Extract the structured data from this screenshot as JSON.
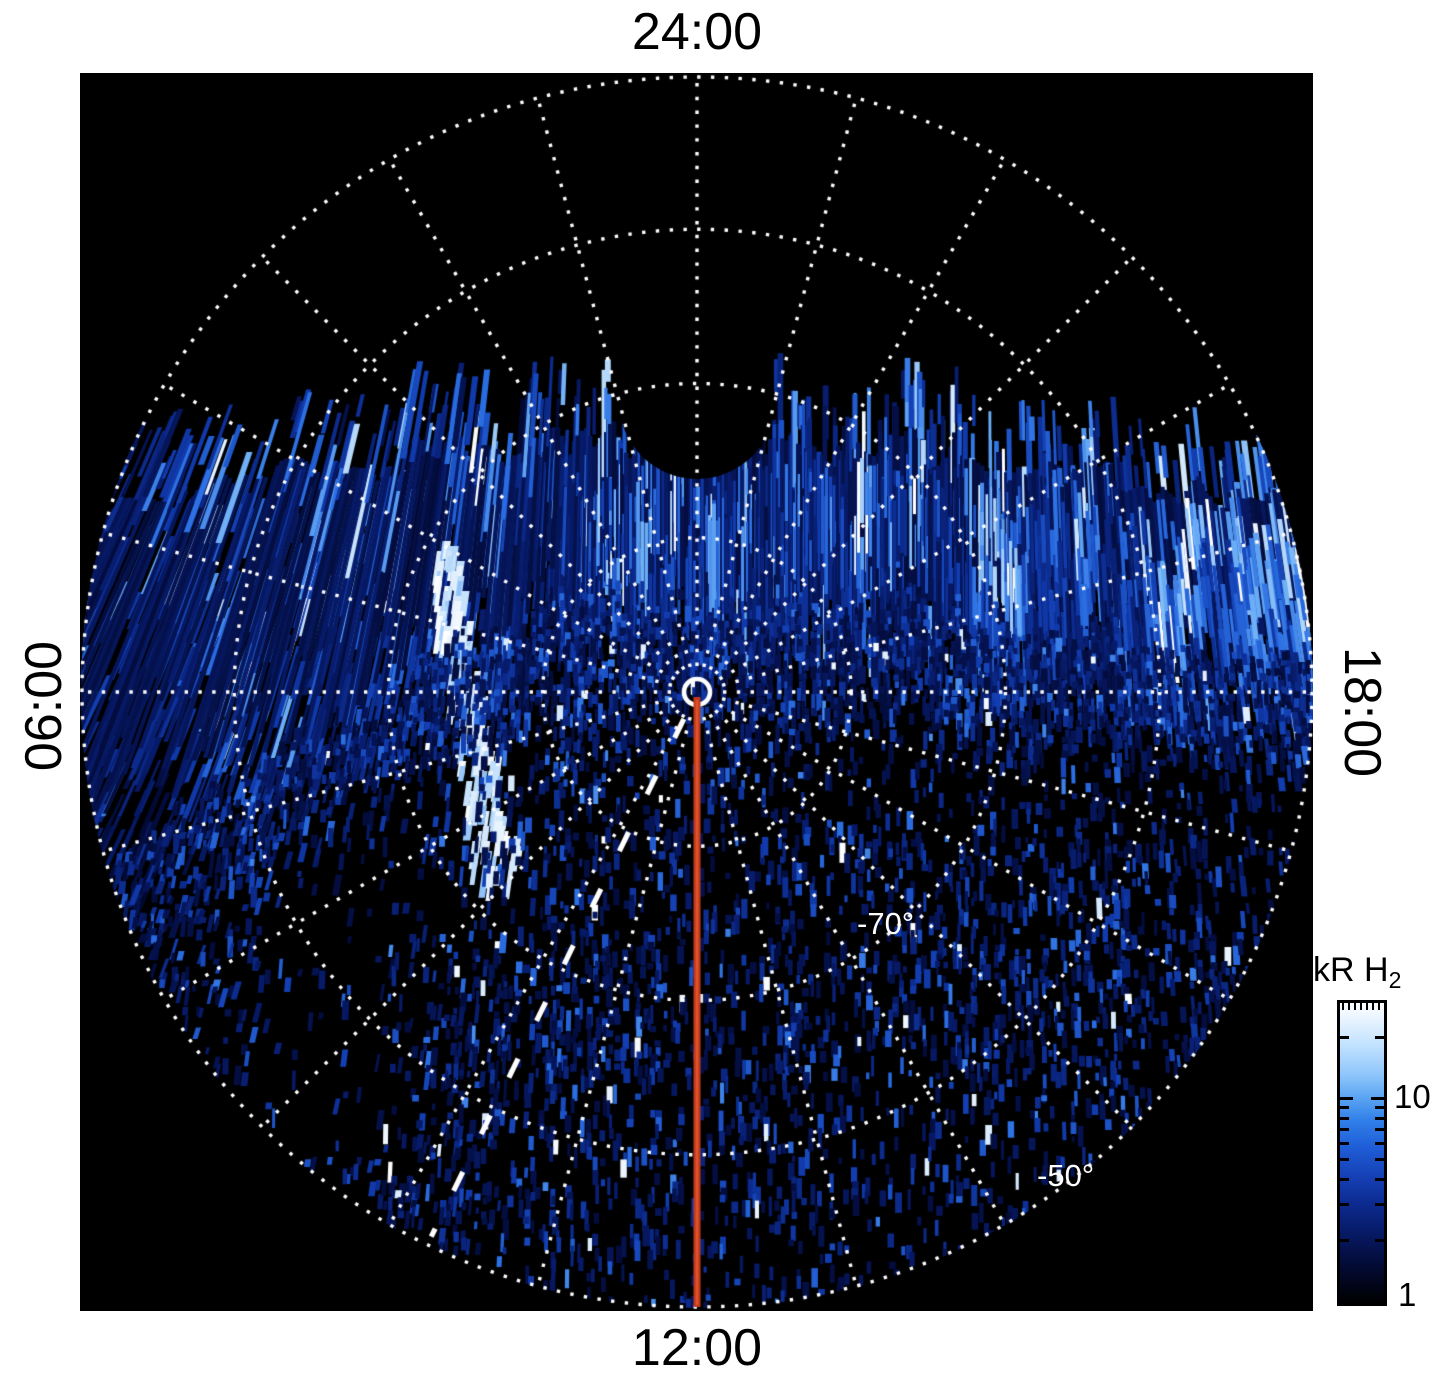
{
  "figure": {
    "time_labels": {
      "top": "24:00",
      "bottom": "12:00",
      "left": "06:00",
      "right": "18:00"
    },
    "lat_labels": [
      {
        "text": "-70°"
      },
      {
        "text": "-50°"
      }
    ],
    "colorbar": {
      "title_main": "kR H",
      "title_sub": "2",
      "tick_top": "10",
      "tick_bottom": "1"
    },
    "colors": {
      "page_bg": "#ffffff",
      "plot_bg": "#000000",
      "grid": "#ffffff",
      "red_line": "#c23a1d",
      "red_line_core": "#de5529",
      "text": "#000000",
      "label_on_plot": "#ffffff"
    }
  },
  "chart_data": {
    "type": "heatmap",
    "projection": "polar",
    "hemisphere": "southern (pole at center)",
    "quantity": "H2 auroral emission brightness",
    "units": "kR",
    "title": "kR H2",
    "color_scale": {
      "type": "log",
      "min": 1,
      "max": 30,
      "tick_labels": [
        "10",
        "1"
      ],
      "low_color": "#000000",
      "mid_color": "#2f7fe8",
      "high_color": "#ffffff"
    },
    "angular_axis": {
      "kind": "local time",
      "spoke_interval_hours": 1,
      "spoke_interval_deg": 15,
      "labels": [
        {
          "position": "top",
          "text": "24:00"
        },
        {
          "position": "left",
          "text": "06:00"
        },
        {
          "position": "bottom",
          "text": "12:00"
        },
        {
          "position": "right",
          "text": "18:00"
        }
      ]
    },
    "radial_axis": {
      "kind": "latitude (deg)",
      "pole_deg": -90,
      "outer_deg": -50,
      "circle_interval_deg": 10,
      "grid_circles_deg": [
        -80,
        -70,
        -60,
        -50
      ],
      "labeled_circles": [
        "-70°",
        "-50°"
      ]
    },
    "grid": {
      "style": "dotted",
      "color": "#ffffff"
    },
    "annotations": [
      {
        "name": "pole_marker",
        "shape": "open circle",
        "color": "#ffffff",
        "at": "pole (center)"
      },
      {
        "name": "noon_meridian_line",
        "shape": "solid line",
        "color": "#c23a1d",
        "from": "pole",
        "to": "outer circle at 12:00 LT"
      },
      {
        "name": "reference_dashed_line",
        "shape": "long-dash line",
        "color": "#ffffff",
        "from": "pole",
        "direction_local_time": "~10:20"
      }
    ],
    "features": [
      {
        "name": "nightside_gap",
        "description": "black unobserved sector toward 24:00 with ragged streaky lower edge and semicircular notch at the noon meridian"
      },
      {
        "name": "auroral_band",
        "description": "bright streaked blue emission band spanning dawn–dusk just below the ragged edge, brightest ~ -75° to -65°"
      },
      {
        "name": "bright_swath",
        "description": "near-white curved vertical swath dawn-side of the noon meridian"
      },
      {
        "name": "dayside_speckle",
        "description": "faint noisy blue speckle emission filling the disk toward 12:00, with a darker lane in the dawn/noon quadrant"
      }
    ]
  }
}
